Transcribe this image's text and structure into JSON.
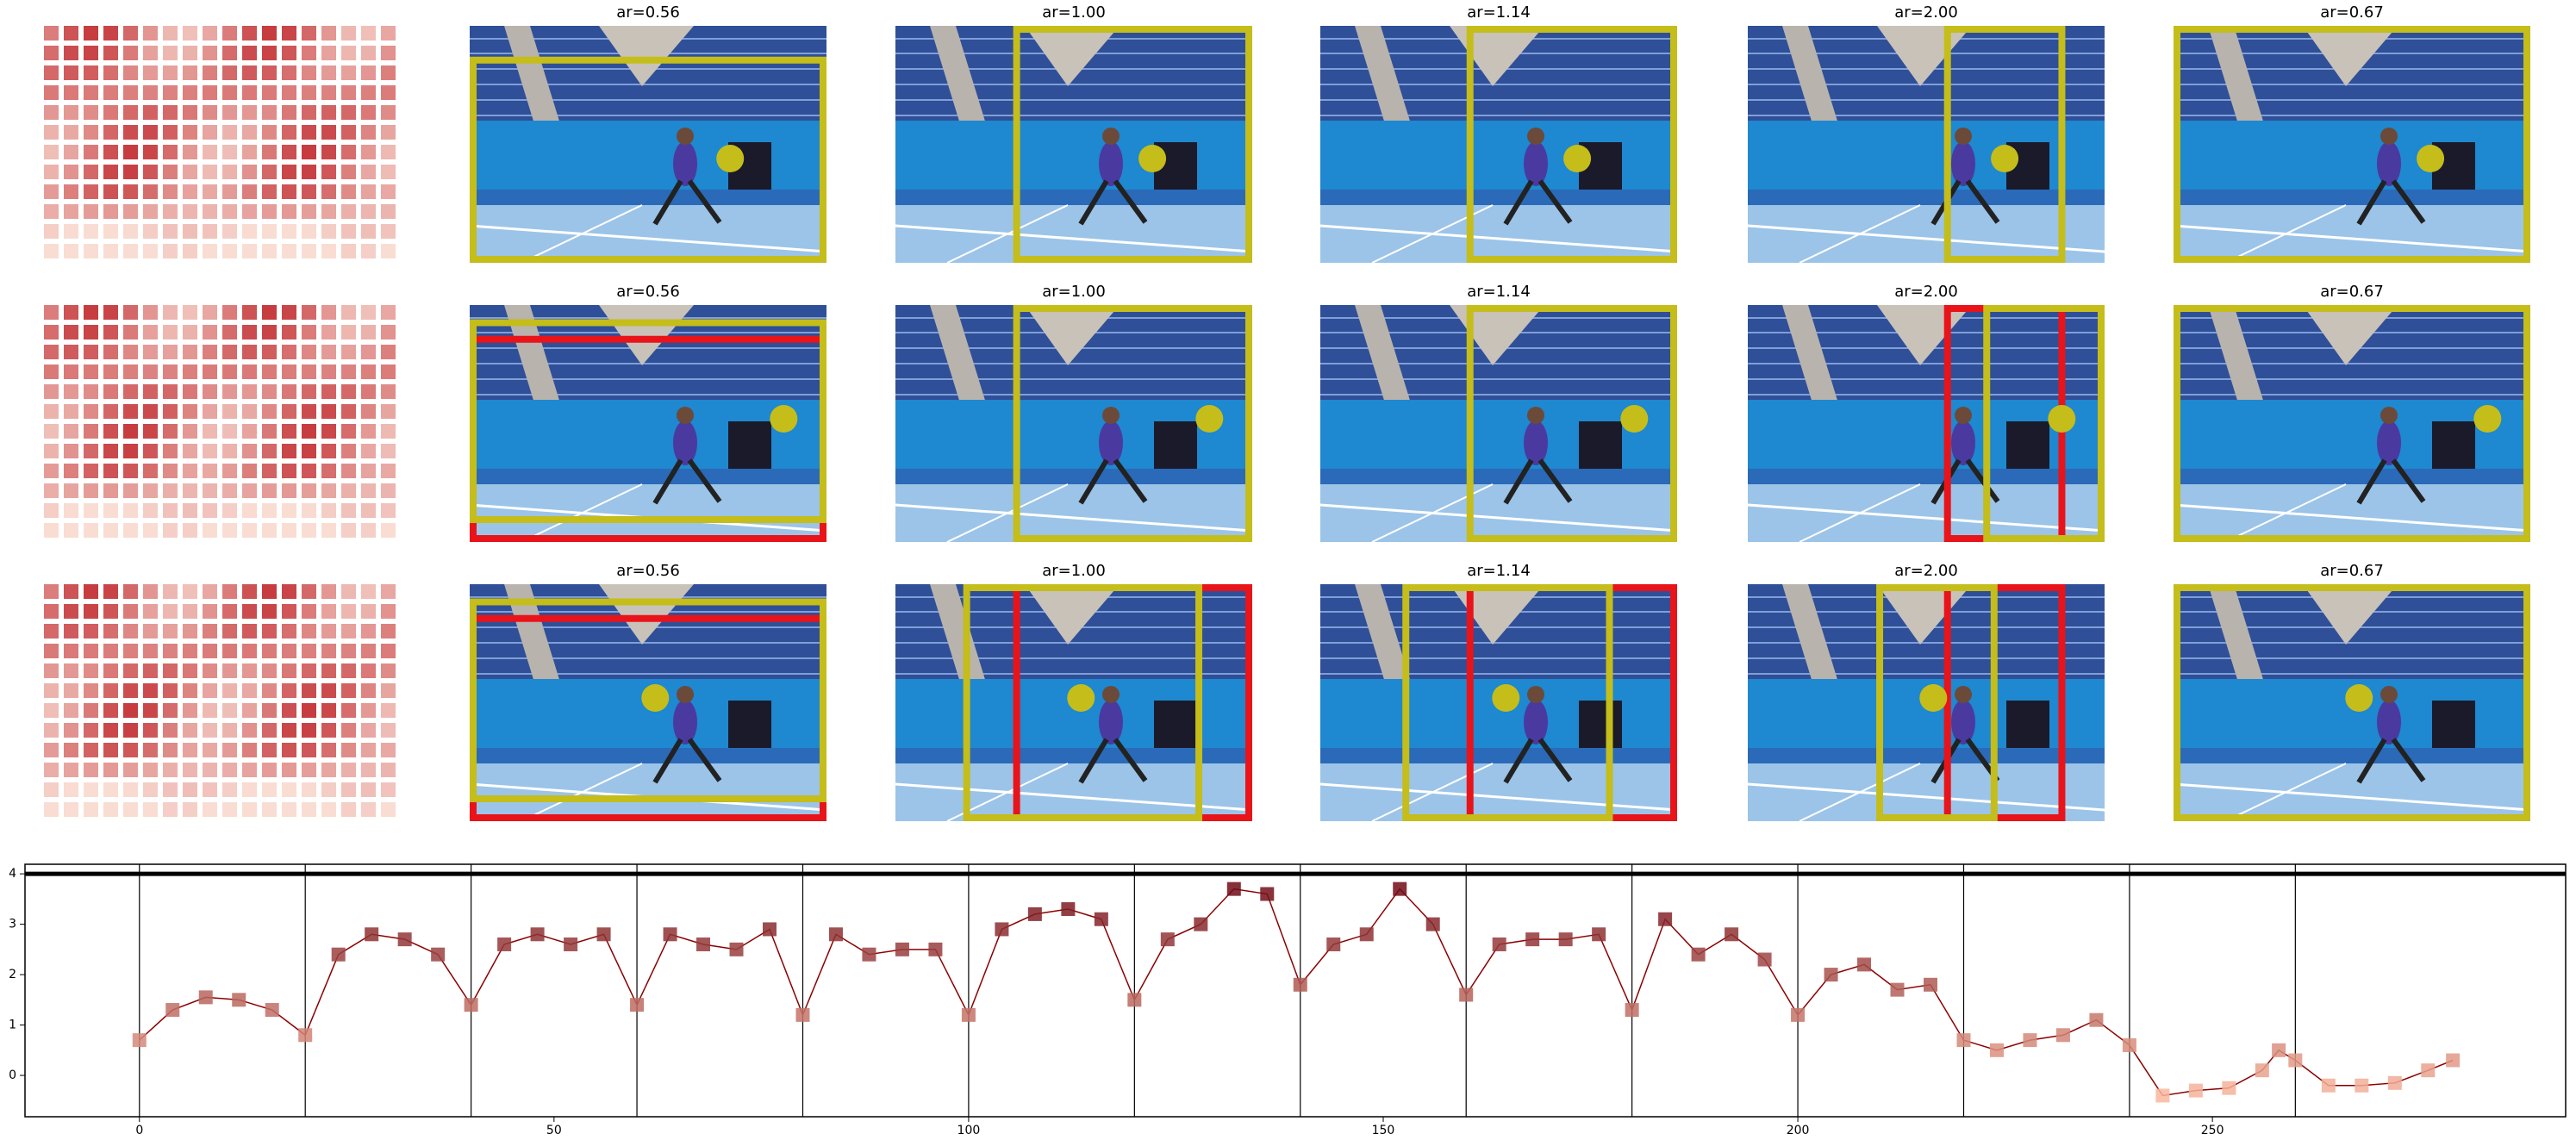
{
  "panel_titles": [
    [
      "ar=0.56",
      "ar=1.00",
      "ar=1.14",
      "ar=2.00",
      "ar=0.67"
    ],
    [
      "ar=0.56",
      "ar=1.00",
      "ar=1.14",
      "ar=2.00",
      "ar=0.67"
    ],
    [
      "ar=0.56",
      "ar=1.00",
      "ar=1.14",
      "ar=2.00",
      "ar=0.67"
    ]
  ],
  "chart_data": {
    "type": "line",
    "x": [
      0,
      4,
      8,
      12,
      16,
      20,
      24,
      28,
      32,
      36,
      40,
      44,
      48,
      52,
      56,
      60,
      64,
      68,
      72,
      76,
      80,
      84,
      88,
      92,
      96,
      100,
      104,
      108,
      112,
      116,
      120,
      124,
      128,
      132,
      136,
      140,
      144,
      148,
      152,
      156,
      160,
      164,
      168,
      172,
      176,
      180,
      184,
      188,
      192,
      196,
      200,
      204,
      208,
      212,
      216,
      220,
      224,
      228,
      232,
      236,
      240,
      244,
      248,
      252,
      256,
      258,
      260,
      264,
      268,
      272,
      276,
      279
    ],
    "values": [
      0.7,
      1.3,
      1.55,
      1.5,
      1.3,
      0.8,
      2.4,
      2.8,
      2.7,
      2.4,
      1.4,
      2.6,
      2.8,
      2.6,
      2.8,
      1.4,
      2.8,
      2.6,
      2.5,
      2.9,
      1.2,
      2.8,
      2.4,
      2.5,
      2.5,
      1.2,
      2.9,
      3.2,
      3.3,
      3.1,
      1.5,
      2.7,
      3.0,
      3.7,
      3.6,
      1.8,
      2.6,
      2.8,
      3.7,
      3.0,
      1.6,
      2.6,
      2.7,
      2.7,
      2.8,
      1.3,
      3.1,
      2.4,
      2.8,
      2.3,
      1.2,
      2.0,
      2.2,
      1.7,
      1.8,
      0.7,
      0.5,
      0.7,
      0.8,
      1.1,
      0.6,
      -0.4,
      -0.3,
      -0.25,
      0.1,
      0.5,
      0.3,
      -0.2,
      -0.2,
      -0.15,
      0.1,
      0.3
    ],
    "line_color": "#8b0000",
    "colormap": [
      "#fcbba1",
      "#67000d"
    ],
    "clim": [
      -0.5,
      4
    ],
    "xlim": [
      -13.8,
      292.6
    ],
    "ylim": [
      -0.82,
      4.19
    ],
    "xticks": [
      0,
      50,
      100,
      150,
      200,
      250
    ],
    "yticks": [
      0,
      1,
      2,
      3,
      4
    ],
    "vlines": [
      0,
      20,
      40,
      60,
      80,
      100,
      120,
      140,
      160,
      180,
      200,
      220,
      240,
      260
    ],
    "hline": 4
  }
}
